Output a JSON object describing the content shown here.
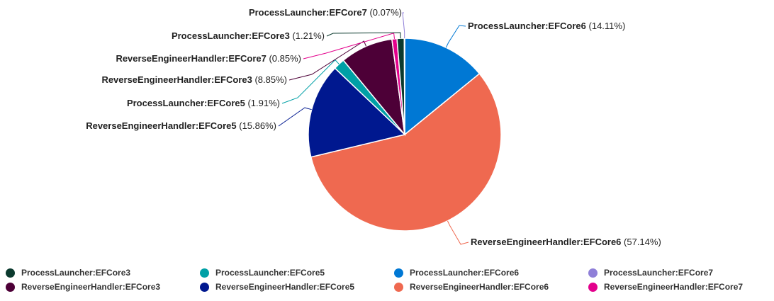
{
  "chart_data": {
    "type": "pie",
    "title": "",
    "start_angle_deg": 0,
    "direction": "clockwise",
    "slices": [
      {
        "key": "pl6",
        "label": "ProcessLauncher:EFCore6",
        "value": 14.11,
        "pct_label": "(14.11%)",
        "color": "#0078D4"
      },
      {
        "key": "reh6",
        "label": "ReverseEngineerHandler:EFCore6",
        "value": 57.14,
        "pct_label": "(57.14%)",
        "color": "#EF6950"
      },
      {
        "key": "reh5",
        "label": "ReverseEngineerHandler:EFCore5",
        "value": 15.86,
        "pct_label": "(15.86%)",
        "color": "#00188F"
      },
      {
        "key": "pl5",
        "label": "ProcessLauncher:EFCore5",
        "value": 1.91,
        "pct_label": "(1.91%)",
        "color": "#00A0A6"
      },
      {
        "key": "reh3",
        "label": "ReverseEngineerHandler:EFCore3",
        "value": 8.85,
        "pct_label": "(8.85%)",
        "color": "#4D0037"
      },
      {
        "key": "reh7",
        "label": "ReverseEngineerHandler:EFCore7",
        "value": 0.85,
        "pct_label": "(0.85%)",
        "color": "#E3008C"
      },
      {
        "key": "pl3",
        "label": "ProcessLauncher:EFCore3",
        "value": 1.21,
        "pct_label": "(1.21%)",
        "color": "#0B3A2E"
      },
      {
        "key": "pl7",
        "label": "ProcessLauncher:EFCore7",
        "value": 0.07,
        "pct_label": "(0.07%)",
        "color": "#8F7FD8"
      }
    ],
    "legend": {
      "placement": "bottom",
      "items": [
        {
          "label": "ProcessLauncher:EFCore3",
          "color": "#0B3A2E"
        },
        {
          "label": "ProcessLauncher:EFCore5",
          "color": "#00A0A6"
        },
        {
          "label": "ProcessLauncher:EFCore6",
          "color": "#0078D4"
        },
        {
          "label": "ProcessLauncher:EFCore7",
          "color": "#8F7FD8"
        },
        {
          "label": "ReverseEngineerHandler:EFCore3",
          "color": "#4D0037"
        },
        {
          "label": "ReverseEngineerHandler:EFCore5",
          "color": "#00188F"
        },
        {
          "label": "ReverseEngineerHandler:EFCore6",
          "color": "#EF6950"
        },
        {
          "label": "ReverseEngineerHandler:EFCore7",
          "color": "#E3008C"
        }
      ]
    }
  }
}
